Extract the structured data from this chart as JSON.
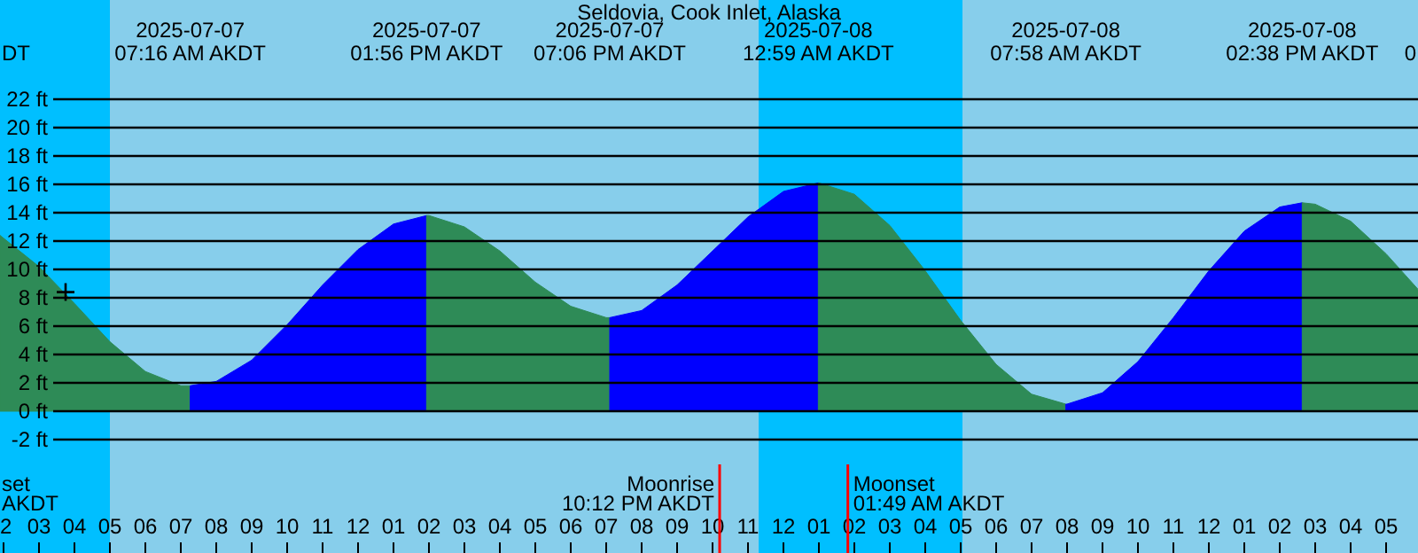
{
  "chart_data": {
    "type": "area",
    "title": "Seldovia, Cook Inlet, Alaska",
    "series": [
      {
        "color": "#2e8b57",
        "x": [
          "2025-07-07T01:54",
          "2025-07-07T02:00",
          "2025-07-07T03:00",
          "2025-07-07T04:00",
          "2025-07-07T05:00",
          "2025-07-07T06:00",
          "2025-07-07T07:00",
          "2025-07-07T07:16"
        ],
        "values": [
          12.4,
          12.2,
          10.2,
          7.6,
          4.9,
          2.8,
          1.8,
          1.8
        ]
      },
      {
        "color": "#0000ff",
        "x": [
          "2025-07-07T07:16",
          "2025-07-07T08:00",
          "2025-07-07T09:00",
          "2025-07-07T10:00",
          "2025-07-07T11:00",
          "2025-07-07T12:00",
          "2025-07-07T13:00",
          "2025-07-07T13:56"
        ],
        "values": [
          1.8,
          2.1,
          3.6,
          6.1,
          8.9,
          11.4,
          13.2,
          13.8
        ]
      },
      {
        "color": "#2e8b57",
        "x": [
          "2025-07-07T13:56",
          "2025-07-07T14:00",
          "2025-07-07T15:00",
          "2025-07-07T16:00",
          "2025-07-07T17:00",
          "2025-07-07T18:00",
          "2025-07-07T19:00",
          "2025-07-07T19:06"
        ],
        "values": [
          13.8,
          13.8,
          13.0,
          11.3,
          9.1,
          7.4,
          6.6,
          6.6
        ]
      },
      {
        "color": "#0000ff",
        "x": [
          "2025-07-07T19:06",
          "2025-07-07T20:00",
          "2025-07-07T21:00",
          "2025-07-07T22:00",
          "2025-07-07T23:00",
          "2025-07-08T00:00",
          "2025-07-08T00:59"
        ],
        "values": [
          6.6,
          7.1,
          8.9,
          11.3,
          13.7,
          15.5,
          16.1
        ]
      },
      {
        "color": "#2e8b57",
        "x": [
          "2025-07-08T00:59",
          "2025-07-08T01:00",
          "2025-07-08T02:00",
          "2025-07-08T03:00",
          "2025-07-08T04:00",
          "2025-07-08T05:00",
          "2025-07-08T06:00",
          "2025-07-08T07:00",
          "2025-07-08T07:58"
        ],
        "values": [
          16.1,
          16.1,
          15.3,
          13.1,
          9.9,
          6.4,
          3.3,
          1.2,
          0.5
        ]
      },
      {
        "color": "#0000ff",
        "x": [
          "2025-07-08T07:58",
          "2025-07-08T08:00",
          "2025-07-08T09:00",
          "2025-07-08T10:00",
          "2025-07-08T11:00",
          "2025-07-08T12:00",
          "2025-07-08T13:00",
          "2025-07-08T14:00",
          "2025-07-08T14:38"
        ],
        "values": [
          0.5,
          0.5,
          1.3,
          3.5,
          6.6,
          9.9,
          12.7,
          14.4,
          14.7
        ]
      },
      {
        "color": "#2e8b57",
        "x": [
          "2025-07-08T14:38",
          "2025-07-08T15:00",
          "2025-07-08T16:00",
          "2025-07-08T17:00",
          "2025-07-08T17:54"
        ],
        "values": [
          14.7,
          14.6,
          13.4,
          11.1,
          8.6
        ]
      },
      {
        "type": "scatter",
        "color": "#000000",
        "marker": "cross",
        "x": [
          "2025-07-07T03:45"
        ],
        "values": [
          8.4
        ]
      }
    ],
    "xlim": [
      "2025-07-07T01:54",
      "2025-07-08T17:54"
    ],
    "xticks": [
      {
        "value": "2025-07-07T02:00",
        "label": "2"
      },
      {
        "value": "2025-07-07T03:00",
        "label": "03"
      },
      {
        "value": "2025-07-07T04:00",
        "label": "04"
      },
      {
        "value": "2025-07-07T05:00",
        "label": "05"
      },
      {
        "value": "2025-07-07T06:00",
        "label": "06"
      },
      {
        "value": "2025-07-07T07:00",
        "label": "07"
      },
      {
        "value": "2025-07-07T08:00",
        "label": "08"
      },
      {
        "value": "2025-07-07T09:00",
        "label": "09"
      },
      {
        "value": "2025-07-07T10:00",
        "label": "10"
      },
      {
        "value": "2025-07-07T11:00",
        "label": "11"
      },
      {
        "value": "2025-07-07T12:00",
        "label": "12"
      },
      {
        "value": "2025-07-07T13:00",
        "label": "01"
      },
      {
        "value": "2025-07-07T14:00",
        "label": "02"
      },
      {
        "value": "2025-07-07T15:00",
        "label": "03"
      },
      {
        "value": "2025-07-07T16:00",
        "label": "04"
      },
      {
        "value": "2025-07-07T17:00",
        "label": "05"
      },
      {
        "value": "2025-07-07T18:00",
        "label": "06"
      },
      {
        "value": "2025-07-07T19:00",
        "label": "07"
      },
      {
        "value": "2025-07-07T20:00",
        "label": "08"
      },
      {
        "value": "2025-07-07T21:00",
        "label": "09"
      },
      {
        "value": "2025-07-07T22:00",
        "label": "10"
      },
      {
        "value": "2025-07-07T23:00",
        "label": "11"
      },
      {
        "value": "2025-07-08T00:00",
        "label": "12"
      },
      {
        "value": "2025-07-08T01:00",
        "label": "01"
      },
      {
        "value": "2025-07-08T02:00",
        "label": "02"
      },
      {
        "value": "2025-07-08T03:00",
        "label": "03"
      },
      {
        "value": "2025-07-08T04:00",
        "label": "04"
      },
      {
        "value": "2025-07-08T05:00",
        "label": "05"
      },
      {
        "value": "2025-07-08T06:00",
        "label": "06"
      },
      {
        "value": "2025-07-08T07:00",
        "label": "07"
      },
      {
        "value": "2025-07-08T08:00",
        "label": "08"
      },
      {
        "value": "2025-07-08T09:00",
        "label": "09"
      },
      {
        "value": "2025-07-08T10:00",
        "label": "10"
      },
      {
        "value": "2025-07-08T11:00",
        "label": "11"
      },
      {
        "value": "2025-07-08T12:00",
        "label": "12"
      },
      {
        "value": "2025-07-08T13:00",
        "label": "01"
      },
      {
        "value": "2025-07-08T14:00",
        "label": "02"
      },
      {
        "value": "2025-07-08T15:00",
        "label": "03"
      },
      {
        "value": "2025-07-08T16:00",
        "label": "04"
      },
      {
        "value": "2025-07-08T17:00",
        "label": "05"
      }
    ],
    "ylim": [
      -10,
      29
    ],
    "yticks": [
      {
        "value": -2,
        "label": "-2 ft"
      },
      {
        "value": 0,
        "label": "0 ft"
      },
      {
        "value": 2,
        "label": "2 ft"
      },
      {
        "value": 4,
        "label": "4 ft"
      },
      {
        "value": 6,
        "label": "6 ft"
      },
      {
        "value": 8,
        "label": "8 ft"
      },
      {
        "value": 10,
        "label": "10 ft"
      },
      {
        "value": 12,
        "label": "12 ft"
      },
      {
        "value": 14,
        "label": "14 ft"
      },
      {
        "value": 16,
        "label": "16 ft"
      },
      {
        "value": 18,
        "label": "18 ft"
      },
      {
        "value": 20,
        "label": "20 ft"
      },
      {
        "value": 22,
        "label": "22 ft"
      }
    ],
    "grid": "y",
    "bands": [
      {
        "axis": "x",
        "from": "2025-07-07T01:54",
        "to": "2025-07-07T05:00",
        "color": "#00bfff"
      },
      {
        "axis": "x",
        "from": "2025-07-07T23:18",
        "to": "2025-07-08T05:03",
        "color": "#00bfff"
      }
    ],
    "ref_lines": [
      {
        "axis": "x",
        "value": "2025-07-07T22:12",
        "label": "Moonrise\n10:12 PM AKDT",
        "color": "#ff0000"
      },
      {
        "axis": "x",
        "value": "2025-07-08T01:49",
        "label": "Moonset\n01:49 AM AKDT",
        "color": "#ff0000"
      }
    ],
    "annotations": [
      "2025-07-07\n07:16 AM AKDT",
      "2025-07-07\n01:56 PM AKDT",
      "2025-07-07\n07:06 PM AKDT",
      "2025-07-08\n12:59 AM AKDT",
      "2025-07-08\n07:58 AM AKDT",
      "2025-07-08\n02:38 PM AKDT",
      "DT",
      "set\nAKDT",
      "0"
    ]
  }
}
